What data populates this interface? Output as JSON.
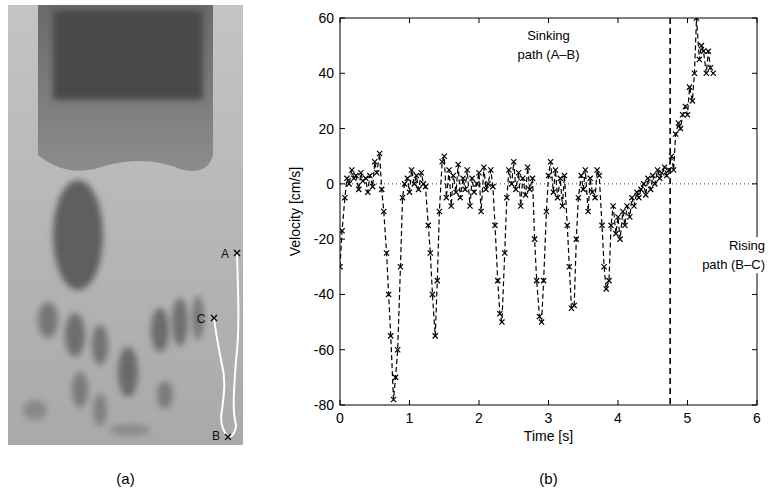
{
  "photo": {
    "caption": "(a)",
    "points": [
      "A",
      "B",
      "C"
    ]
  },
  "chart_data": {
    "type": "line",
    "panel_label": "(b)",
    "x_label": "Time [s]",
    "y_label": "Velocity [cm/s]",
    "xlim": [
      0,
      6
    ],
    "ylim": [
      -80,
      60
    ],
    "xticks": [
      0,
      1,
      2,
      3,
      4,
      5,
      6
    ],
    "yticks": [
      -80,
      -60,
      -40,
      -20,
      0,
      20,
      40,
      60
    ],
    "grid": false,
    "switch_time": 4.75,
    "reference_y": 0,
    "annotations": [
      {
        "lines": [
          "Sinking",
          "path (A–B)"
        ]
      },
      {
        "lines": [
          "Rising",
          "path (B–C)"
        ]
      }
    ],
    "series": [
      {
        "color": "#000000",
        "marker": "x",
        "line_style": "dashed",
        "x": [
          0.0,
          0.03,
          0.07,
          0.1,
          0.13,
          0.17,
          0.2,
          0.23,
          0.27,
          0.3,
          0.33,
          0.37,
          0.4,
          0.43,
          0.47,
          0.5,
          0.53,
          0.57,
          0.6,
          0.63,
          0.67,
          0.7,
          0.73,
          0.77,
          0.8,
          0.83,
          0.87,
          0.9,
          0.93,
          0.97,
          1.0,
          1.03,
          1.07,
          1.1,
          1.13,
          1.17,
          1.2,
          1.23,
          1.27,
          1.3,
          1.33,
          1.37,
          1.4,
          1.43,
          1.47,
          1.5,
          1.53,
          1.57,
          1.6,
          1.63,
          1.67,
          1.7,
          1.73,
          1.77,
          1.8,
          1.83,
          1.87,
          1.9,
          1.93,
          1.97,
          2.0,
          2.03,
          2.07,
          2.1,
          2.13,
          2.17,
          2.2,
          2.23,
          2.27,
          2.3,
          2.33,
          2.37,
          2.4,
          2.43,
          2.47,
          2.5,
          2.53,
          2.57,
          2.6,
          2.63,
          2.67,
          2.7,
          2.73,
          2.77,
          2.8,
          2.83,
          2.87,
          2.9,
          2.93,
          2.97,
          3.0,
          3.03,
          3.07,
          3.1,
          3.13,
          3.17,
          3.2,
          3.23,
          3.27,
          3.3,
          3.33,
          3.37,
          3.4,
          3.43,
          3.47,
          3.5,
          3.53,
          3.57,
          3.6,
          3.63,
          3.67,
          3.7,
          3.73,
          3.77,
          3.8,
          3.83,
          3.87,
          3.9,
          3.93,
          3.97,
          4.0,
          4.03,
          4.07,
          4.1,
          4.13,
          4.17,
          4.2,
          4.23,
          4.27,
          4.3,
          4.33,
          4.37,
          4.4,
          4.43,
          4.47,
          4.5,
          4.53,
          4.57,
          4.6,
          4.63,
          4.67,
          4.7,
          4.73,
          4.77,
          4.8,
          4.83,
          4.87,
          4.9,
          4.93,
          4.97,
          5.0,
          5.03,
          5.07,
          5.1,
          5.13,
          5.17,
          5.2,
          5.23,
          5.27,
          5.3,
          5.33,
          5.37
        ],
        "values": [
          -30,
          -17,
          -5,
          2,
          0,
          5,
          2,
          3,
          -2,
          4,
          1,
          2,
          -3,
          3,
          -1,
          8,
          4,
          11,
          -2,
          -10,
          -25,
          -40,
          -55,
          -78,
          -70,
          -60,
          -30,
          -5,
          0,
          2,
          -3,
          5,
          0,
          3,
          -2,
          4,
          0,
          -1,
          -15,
          -25,
          -40,
          -55,
          -35,
          -10,
          8,
          10,
          -5,
          5,
          -8,
          3,
          -3,
          7,
          -5,
          2,
          -2,
          5,
          -8,
          2,
          -3,
          0,
          4,
          -10,
          6,
          -2,
          0,
          5,
          -1,
          -15,
          -35,
          -47,
          -50,
          -25,
          -5,
          5,
          0,
          8,
          -2,
          4,
          -8,
          2,
          -4,
          6,
          -2,
          2,
          -20,
          -35,
          -48,
          -50,
          -35,
          -10,
          3,
          8,
          -3,
          5,
          -5,
          2,
          -8,
          3,
          -15,
          -30,
          -45,
          -44,
          -20,
          -5,
          3,
          -2,
          5,
          -10,
          2,
          -3,
          -5,
          5,
          3,
          -15,
          -30,
          -38,
          -35,
          -15,
          -8,
          -18,
          -12,
          -20,
          -10,
          -15,
          -8,
          -12,
          -5,
          -8,
          -3,
          -5,
          -2,
          0,
          -4,
          2,
          -2,
          3,
          0,
          5,
          2,
          4,
          6,
          3,
          5,
          10,
          5,
          18,
          22,
          20,
          25,
          28,
          25,
          35,
          30,
          40,
          60,
          45,
          50,
          48,
          40,
          48,
          42,
          40
        ]
      }
    ]
  }
}
